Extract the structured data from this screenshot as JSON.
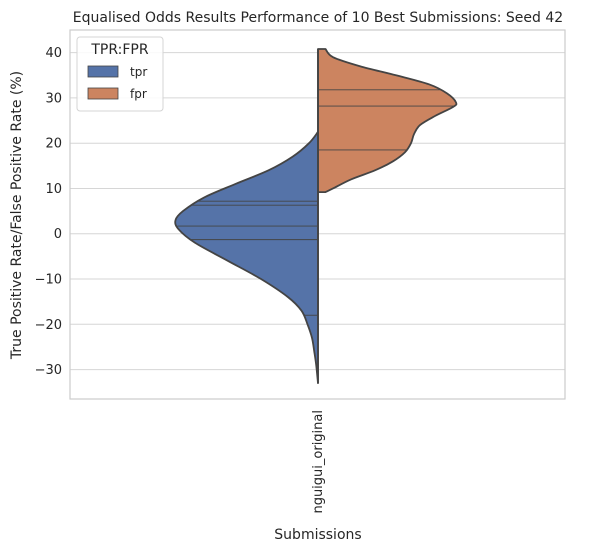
{
  "chart_data": {
    "type": "violin",
    "title": "Equalised Odds Results Performance of 10 Best Submissions: Seed 42",
    "xlabel": "Submissions",
    "ylabel": "True Positive Rate/False Positive Rate (%)",
    "categories": [
      "nguigui_original"
    ],
    "ylim": [
      -36.5,
      45
    ],
    "yticks": [
      -30,
      -20,
      -10,
      0,
      10,
      20,
      30,
      40
    ],
    "grid": true,
    "legend": {
      "title": "TPR:FPR",
      "placement": "top-left"
    },
    "series": [
      {
        "name": "tpr",
        "color": "#5573a8",
        "side": "left",
        "range": [
          -33,
          22.5
        ],
        "quartile_lines": [
          7.2,
          6.3,
          1.7,
          -1.3,
          -18
        ],
        "profile": [
          [
            22.5,
            0.0
          ],
          [
            20,
            0.06
          ],
          [
            17,
            0.17
          ],
          [
            14,
            0.33
          ],
          [
            11,
            0.55
          ],
          [
            8,
            0.76
          ],
          [
            5,
            0.9
          ],
          [
            3,
            0.95
          ],
          [
            1,
            0.93
          ],
          [
            -2,
            0.82
          ],
          [
            -6,
            0.6
          ],
          [
            -10,
            0.38
          ],
          [
            -14,
            0.2
          ],
          [
            -17,
            0.11
          ],
          [
            -20,
            0.07
          ],
          [
            -23,
            0.04
          ],
          [
            -26,
            0.025
          ],
          [
            -29,
            0.012
          ],
          [
            -33,
            0.0
          ]
        ]
      },
      {
        "name": "fpr",
        "color": "#cc8460",
        "side": "right",
        "range": [
          9.2,
          40.8
        ],
        "quartile_lines": [
          31.8,
          28.2,
          18.5
        ],
        "profile": [
          [
            40.8,
            0.05
          ],
          [
            39,
            0.1
          ],
          [
            37,
            0.28
          ],
          [
            35,
            0.52
          ],
          [
            33,
            0.74
          ],
          [
            31,
            0.86
          ],
          [
            29,
            0.92
          ],
          [
            28,
            0.9
          ],
          [
            26,
            0.78
          ],
          [
            24,
            0.68
          ],
          [
            22,
            0.64
          ],
          [
            20,
            0.62
          ],
          [
            18,
            0.58
          ],
          [
            16,
            0.5
          ],
          [
            14,
            0.38
          ],
          [
            12,
            0.22
          ],
          [
            10,
            0.1
          ],
          [
            9.2,
            0.05
          ]
        ]
      }
    ]
  }
}
